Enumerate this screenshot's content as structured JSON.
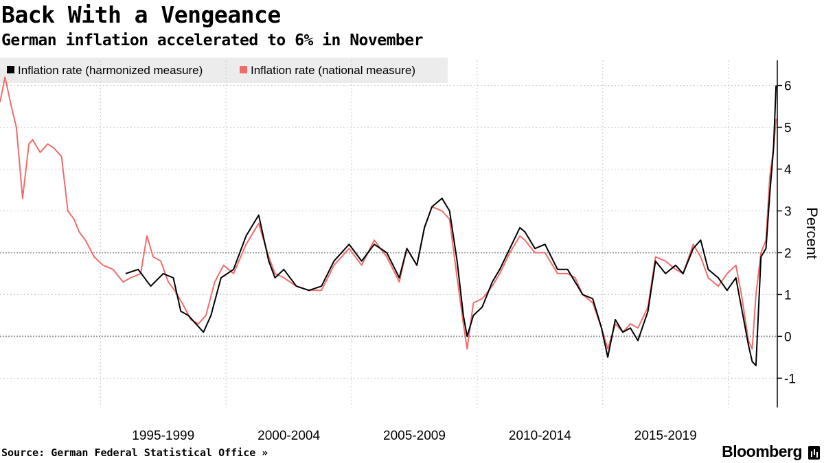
{
  "header": {
    "title": "Back With a Vengeance",
    "subtitle": "German inflation accelerated to 6% in November"
  },
  "footer": {
    "source": "Source: German Federal Statistical Office »",
    "brand": "Bloomberg"
  },
  "colors": {
    "harmonized": "#000000",
    "national": "#f26b6b",
    "grid": "#c8c8c8",
    "refline": "#9a9a9a"
  },
  "chart_data": {
    "type": "line",
    "title": "Back With a Vengeance",
    "subtitle": "German inflation accelerated to 6% in November",
    "xlabel": "",
    "ylabel": "Percent",
    "ylim": [
      -1.7,
      6.6
    ],
    "xlim": [
      1991.0,
      2021.95
    ],
    "yticks": [
      -1,
      0,
      1,
      2,
      3,
      4,
      5,
      6
    ],
    "xtick_labels": [
      "1995-1999",
      "2000-2004",
      "2005-2009",
      "2010-2014",
      "2015-2019"
    ],
    "xtick_centers": [
      1997.5,
      2002.5,
      2007.5,
      2012.5,
      2017.5
    ],
    "reference_lines": [
      0,
      2
    ],
    "legend": [
      "Inflation rate (harmonized measure)",
      "Inflation rate (national measure)"
    ],
    "series": [
      {
        "name": "Inflation rate (harmonized measure)",
        "x": [
          1996.0,
          1996.5,
          1997.0,
          1997.5,
          1997.9,
          1998.2,
          1998.5,
          1998.8,
          1999.1,
          1999.4,
          1999.8,
          2000.3,
          2000.8,
          2001.3,
          2001.7,
          2001.95,
          2002.3,
          2002.8,
          2003.3,
          2003.8,
          2004.3,
          2004.9,
          2005.4,
          2005.9,
          2006.4,
          2006.9,
          2007.2,
          2007.6,
          2007.9,
          2008.2,
          2008.6,
          2008.9,
          2009.2,
          2009.45,
          2009.6,
          2009.85,
          2010.2,
          2010.6,
          2010.9,
          2011.3,
          2011.7,
          2011.9,
          2012.3,
          2012.7,
          2013.2,
          2013.6,
          2013.9,
          2014.2,
          2014.6,
          2014.95,
          2015.2,
          2015.5,
          2015.8,
          2016.1,
          2016.4,
          2016.8,
          2017.1,
          2017.5,
          2017.9,
          2018.2,
          2018.6,
          2018.9,
          2019.2,
          2019.6,
          2019.95,
          2020.3,
          2020.55,
          2020.8,
          2020.95,
          2021.1,
          2021.3,
          2021.5,
          2021.65,
          2021.8,
          2021.9
        ],
        "values": [
          1.5,
          1.6,
          1.2,
          1.5,
          1.4,
          0.6,
          0.5,
          0.3,
          0.1,
          0.5,
          1.4,
          1.6,
          2.4,
          2.9,
          1.8,
          1.4,
          1.6,
          1.2,
          1.1,
          1.2,
          1.8,
          2.2,
          1.8,
          2.2,
          2.0,
          1.4,
          2.1,
          1.7,
          2.6,
          3.1,
          3.3,
          3.0,
          1.8,
          0.5,
          0.0,
          0.5,
          0.7,
          1.3,
          1.6,
          2.1,
          2.6,
          2.5,
          2.1,
          2.2,
          1.6,
          1.6,
          1.3,
          1.0,
          0.9,
          0.2,
          -0.5,
          0.4,
          0.1,
          0.2,
          -0.1,
          0.6,
          1.8,
          1.5,
          1.7,
          1.5,
          2.1,
          2.3,
          1.6,
          1.4,
          1.1,
          1.4,
          0.6,
          -0.2,
          -0.6,
          -0.7,
          1.9,
          2.1,
          3.4,
          4.5,
          6.0
        ]
      },
      {
        "name": "Inflation rate (national measure)",
        "x": [
          1991.0,
          1991.2,
          1991.45,
          1991.65,
          1991.9,
          1992.15,
          1992.3,
          1992.6,
          1992.9,
          1993.15,
          1993.45,
          1993.7,
          1993.95,
          1994.15,
          1994.4,
          1994.75,
          1995.1,
          1995.5,
          1995.9,
          1996.2,
          1996.6,
          1996.85,
          1997.1,
          1997.4,
          1997.7,
          1997.95,
          1998.25,
          1998.6,
          1998.9,
          1999.2,
          1999.55,
          1999.9,
          2000.3,
          2000.8,
          2001.3,
          2001.7,
          2001.95,
          2002.3,
          2002.8,
          2003.3,
          2003.8,
          2004.3,
          2004.9,
          2005.4,
          2005.9,
          2006.4,
          2006.9,
          2007.2,
          2007.6,
          2007.9,
          2008.2,
          2008.6,
          2008.9,
          2009.2,
          2009.45,
          2009.6,
          2009.85,
          2010.2,
          2010.6,
          2010.9,
          2011.3,
          2011.7,
          2011.9,
          2012.3,
          2012.7,
          2013.2,
          2013.6,
          2013.9,
          2014.2,
          2014.6,
          2014.95,
          2015.2,
          2015.5,
          2015.8,
          2016.1,
          2016.4,
          2016.8,
          2017.1,
          2017.5,
          2017.9,
          2018.2,
          2018.6,
          2018.9,
          2019.2,
          2019.6,
          2019.95,
          2020.3,
          2020.55,
          2020.8,
          2020.95,
          2021.1,
          2021.3,
          2021.5,
          2021.65,
          2021.8,
          2021.9
        ],
        "values": [
          5.6,
          6.2,
          5.5,
          5.0,
          3.3,
          4.6,
          4.7,
          4.4,
          4.6,
          4.5,
          4.3,
          3.0,
          2.8,
          2.5,
          2.3,
          1.9,
          1.7,
          1.6,
          1.3,
          1.4,
          1.5,
          2.4,
          1.9,
          1.8,
          1.3,
          1.1,
          0.8,
          0.4,
          0.3,
          0.5,
          1.3,
          1.7,
          1.5,
          2.2,
          2.7,
          1.9,
          1.5,
          1.4,
          1.2,
          1.1,
          1.1,
          1.7,
          2.1,
          1.7,
          2.3,
          1.9,
          1.3,
          2.1,
          1.7,
          2.6,
          3.1,
          3.0,
          2.8,
          1.4,
          0.3,
          -0.3,
          0.8,
          0.9,
          1.2,
          1.5,
          2.0,
          2.4,
          2.3,
          2.0,
          2.0,
          1.5,
          1.5,
          1.4,
          1.0,
          0.8,
          0.2,
          -0.3,
          0.3,
          0.1,
          0.3,
          0.2,
          0.7,
          1.9,
          1.8,
          1.6,
          1.5,
          2.2,
          1.9,
          1.4,
          1.2,
          1.5,
          1.7,
          0.9,
          -0.1,
          -0.3,
          1.0,
          2.0,
          2.3,
          3.8,
          4.5,
          5.2
        ]
      }
    ]
  }
}
